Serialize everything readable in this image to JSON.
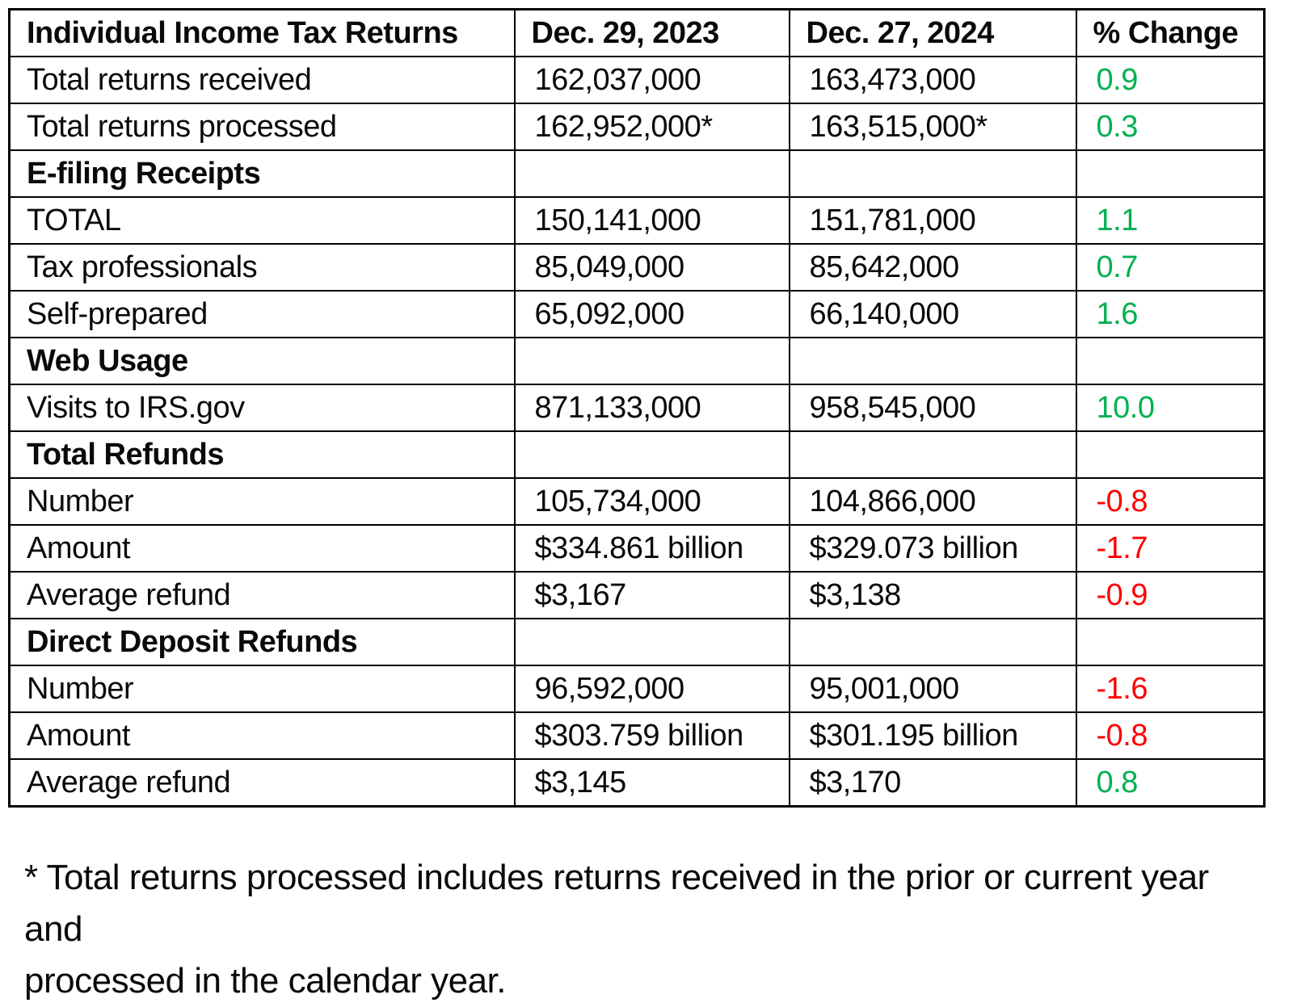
{
  "colors": {
    "positive": "#00B050",
    "negative": "#FF0000",
    "border": "#000000",
    "text": "#0a0a0a"
  },
  "table": {
    "columns": [
      {
        "label": "Individual Income Tax Returns"
      },
      {
        "label": "Dec. 29, 2023"
      },
      {
        "label": "Dec. 27, 2024"
      },
      {
        "label": "% Change"
      }
    ],
    "rows": [
      {
        "type": "data",
        "label": "Total returns received",
        "y2023": "162,037,000",
        "y2024": "163,473,000",
        "change": "0.9",
        "trend": "up"
      },
      {
        "type": "data",
        "label": "Total returns processed",
        "y2023": "162,952,000*",
        "y2024": "163,515,000*",
        "change": "0.3",
        "trend": "up"
      },
      {
        "type": "section",
        "label": "E-filing Receipts",
        "y2023": "",
        "y2024": "",
        "change": "",
        "trend": ""
      },
      {
        "type": "data",
        "label": "TOTAL",
        "y2023": "150,141,000",
        "y2024": "151,781,000",
        "change": "1.1",
        "trend": "up"
      },
      {
        "type": "data",
        "label": "Tax professionals",
        "y2023": "85,049,000",
        "y2024": "85,642,000",
        "change": "0.7",
        "trend": "up"
      },
      {
        "type": "data",
        "label": "Self-prepared",
        "y2023": "65,092,000",
        "y2024": "66,140,000",
        "change": "1.6",
        "trend": "up"
      },
      {
        "type": "section",
        "label": "Web Usage",
        "y2023": "",
        "y2024": "",
        "change": "",
        "trend": ""
      },
      {
        "type": "data",
        "label": "Visits to IRS.gov",
        "y2023": "871,133,000",
        "y2024": "958,545,000",
        "change": "10.0",
        "trend": "up"
      },
      {
        "type": "section",
        "label": "Total Refunds",
        "y2023": "",
        "y2024": "",
        "change": "",
        "trend": ""
      },
      {
        "type": "data",
        "label": "Number",
        "y2023": "105,734,000",
        "y2024": "104,866,000",
        "change": "-0.8",
        "trend": "down"
      },
      {
        "type": "data",
        "label": "Amount",
        "y2023": "$334.861 billion",
        "y2024": "$329.073 billion",
        "change": "-1.7",
        "trend": "down"
      },
      {
        "type": "data",
        "label": "Average refund",
        "y2023": "$3,167",
        "y2024": "$3,138",
        "change": "-0.9",
        "trend": "down"
      },
      {
        "type": "section",
        "label": "Direct Deposit Refunds",
        "y2023": "",
        "y2024": "",
        "change": "",
        "trend": ""
      },
      {
        "type": "data",
        "label": "Number",
        "y2023": "96,592,000",
        "y2024": "95,001,000",
        "change": "-1.6",
        "trend": "down"
      },
      {
        "type": "data",
        "label": "Amount",
        "y2023": "$303.759 billion",
        "y2024": "$301.195 billion",
        "change": "-0.8",
        "trend": "down"
      },
      {
        "type": "data",
        "label": "Average refund",
        "y2023": "$3,145",
        "y2024": "$3,170",
        "change": "0.8",
        "trend": "up"
      }
    ]
  },
  "footnote": {
    "line1": "* Total returns processed includes returns received in the prior or current year and",
    "line2": "processed in the calendar year."
  }
}
